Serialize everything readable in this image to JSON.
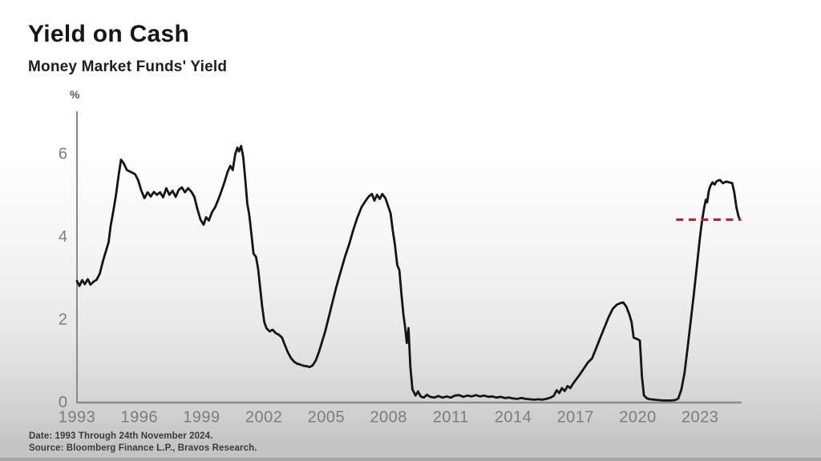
{
  "header": {
    "title": "Yield on Cash",
    "subtitle": "Money Market Funds' Yield"
  },
  "footer": {
    "date_line": "Date: 1993 Through 24th November 2024.",
    "source_line": "Source: Bloomberg Finance L.P., Bravos Research."
  },
  "chart_data": {
    "type": "line",
    "title": "Money Market Funds' Yield",
    "xlabel": "",
    "ylabel": "%",
    "x_ticks": [
      1993,
      1996,
      1999,
      2002,
      2005,
      2008,
      2011,
      2014,
      2017,
      2020,
      2023
    ],
    "y_ticks": [
      0,
      2,
      4,
      6
    ],
    "xlim": [
      1993,
      2025.0
    ],
    "ylim": [
      0,
      7
    ],
    "grid": false,
    "legend": "none",
    "axis_color": "#8a8a8a",
    "tick_label_color": "#7c7c7c",
    "series": [
      {
        "name": "Money Market Funds' Yield",
        "color": "#151515",
        "x": [
          1993.0,
          1993.12,
          1993.25,
          1993.38,
          1993.52,
          1993.65,
          1993.8,
          1993.95,
          1994.1,
          1994.25,
          1994.4,
          1994.52,
          1994.62,
          1994.75,
          1994.88,
          1995.0,
          1995.12,
          1995.25,
          1995.4,
          1995.6,
          1995.8,
          1995.95,
          1996.1,
          1996.25,
          1996.4,
          1996.55,
          1996.7,
          1996.85,
          1997.0,
          1997.15,
          1997.3,
          1997.45,
          1997.6,
          1997.75,
          1997.9,
          1998.05,
          1998.2,
          1998.35,
          1998.5,
          1998.65,
          1998.8,
          1998.95,
          1999.1,
          1999.22,
          1999.35,
          1999.5,
          1999.65,
          1999.8,
          1999.95,
          2000.1,
          2000.25,
          2000.38,
          2000.5,
          2000.62,
          2000.72,
          2000.8,
          2000.9,
          2001.0,
          2001.1,
          2001.2,
          2001.3,
          2001.4,
          2001.5,
          2001.62,
          2001.72,
          2001.82,
          2001.92,
          2002.02,
          2002.12,
          2002.27,
          2002.42,
          2002.57,
          2002.72,
          2002.87,
          2003.0,
          2003.15,
          2003.3,
          2003.45,
          2003.6,
          2003.75,
          2003.9,
          2004.05,
          2004.2,
          2004.35,
          2004.5,
          2004.65,
          2004.8,
          2004.95,
          2005.1,
          2005.3,
          2005.5,
          2005.7,
          2005.9,
          2006.1,
          2006.3,
          2006.5,
          2006.7,
          2006.9,
          2007.05,
          2007.2,
          2007.32,
          2007.45,
          2007.58,
          2007.7,
          2007.85,
          2008.0,
          2008.1,
          2008.2,
          2008.3,
          2008.42,
          2008.52,
          2008.62,
          2008.72,
          2008.8,
          2008.88,
          2008.96,
          2009.05,
          2009.15,
          2009.3,
          2009.42,
          2009.55,
          2009.7,
          2009.85,
          2010.0,
          2010.2,
          2010.4,
          2010.6,
          2010.8,
          2011.0,
          2011.2,
          2011.4,
          2011.6,
          2011.8,
          2012.0,
          2012.2,
          2012.4,
          2012.6,
          2012.8,
          2013.0,
          2013.2,
          2013.4,
          2013.6,
          2013.8,
          2014.0,
          2014.2,
          2014.4,
          2014.6,
          2014.8,
          2015.0,
          2015.2,
          2015.4,
          2015.6,
          2015.8,
          2015.95,
          2016.1,
          2016.22,
          2016.35,
          2016.48,
          2016.62,
          2016.75,
          2016.9,
          2017.05,
          2017.2,
          2017.4,
          2017.6,
          2017.8,
          2018.0,
          2018.2,
          2018.4,
          2018.6,
          2018.8,
          2019.0,
          2019.15,
          2019.3,
          2019.45,
          2019.6,
          2019.7,
          2019.8,
          2019.95,
          2020.1,
          2020.2,
          2020.3,
          2020.45,
          2020.6,
          2020.8,
          2021.0,
          2021.2,
          2021.4,
          2021.6,
          2021.8,
          2021.95,
          2022.1,
          2022.25,
          2022.4,
          2022.55,
          2022.7,
          2022.85,
          2023.0,
          2023.1,
          2023.2,
          2023.28,
          2023.34,
          2023.42,
          2023.5,
          2023.6,
          2023.7,
          2023.8,
          2023.95,
          2024.1,
          2024.25,
          2024.4,
          2024.55,
          2024.65,
          2024.75,
          2024.85,
          2024.9
        ],
        "y": [
          2.92,
          2.8,
          2.94,
          2.84,
          2.96,
          2.83,
          2.9,
          2.95,
          3.1,
          3.4,
          3.65,
          3.85,
          4.25,
          4.6,
          5.0,
          5.45,
          5.85,
          5.76,
          5.6,
          5.55,
          5.5,
          5.35,
          5.1,
          4.92,
          5.06,
          4.96,
          5.07,
          5.0,
          5.06,
          4.94,
          5.16,
          5.0,
          5.1,
          4.95,
          5.12,
          5.18,
          5.06,
          5.16,
          5.08,
          4.95,
          4.65,
          4.4,
          4.28,
          4.46,
          4.38,
          4.58,
          4.7,
          4.88,
          5.08,
          5.3,
          5.55,
          5.7,
          5.6,
          5.98,
          6.14,
          6.05,
          6.18,
          5.92,
          5.4,
          4.8,
          4.5,
          4.05,
          3.58,
          3.5,
          3.22,
          2.75,
          2.28,
          1.92,
          1.78,
          1.7,
          1.74,
          1.66,
          1.62,
          1.55,
          1.38,
          1.2,
          1.06,
          0.97,
          0.92,
          0.9,
          0.87,
          0.86,
          0.84,
          0.88,
          1.0,
          1.2,
          1.45,
          1.7,
          2.0,
          2.4,
          2.8,
          3.15,
          3.5,
          3.8,
          4.15,
          4.45,
          4.7,
          4.86,
          4.96,
          5.02,
          4.86,
          5.0,
          4.9,
          5.02,
          4.92,
          4.7,
          4.55,
          4.15,
          3.82,
          3.3,
          3.18,
          2.6,
          2.1,
          1.8,
          1.42,
          1.78,
          0.85,
          0.3,
          0.15,
          0.25,
          0.13,
          0.1,
          0.17,
          0.12,
          0.1,
          0.14,
          0.1,
          0.13,
          0.1,
          0.15,
          0.16,
          0.12,
          0.15,
          0.13,
          0.16,
          0.13,
          0.15,
          0.12,
          0.13,
          0.1,
          0.12,
          0.09,
          0.1,
          0.08,
          0.07,
          0.09,
          0.07,
          0.06,
          0.05,
          0.06,
          0.05,
          0.07,
          0.1,
          0.14,
          0.28,
          0.21,
          0.33,
          0.26,
          0.38,
          0.33,
          0.45,
          0.55,
          0.65,
          0.8,
          0.95,
          1.05,
          1.3,
          1.55,
          1.8,
          2.05,
          2.25,
          2.35,
          2.38,
          2.4,
          2.3,
          2.1,
          1.93,
          1.55,
          1.52,
          1.48,
          0.6,
          0.15,
          0.08,
          0.06,
          0.05,
          0.04,
          0.03,
          0.03,
          0.03,
          0.04,
          0.08,
          0.3,
          0.7,
          1.3,
          1.95,
          2.6,
          3.3,
          4.0,
          4.4,
          4.7,
          4.88,
          4.82,
          5.1,
          5.22,
          5.3,
          5.25,
          5.33,
          5.36,
          5.28,
          5.32,
          5.3,
          5.28,
          5.05,
          4.7,
          4.48,
          4.42
        ]
      }
    ],
    "reference_line": {
      "value": 4.4,
      "x_start": 2021.85,
      "x_end": 2024.98,
      "color": "#b02535",
      "style": "dashed"
    }
  }
}
